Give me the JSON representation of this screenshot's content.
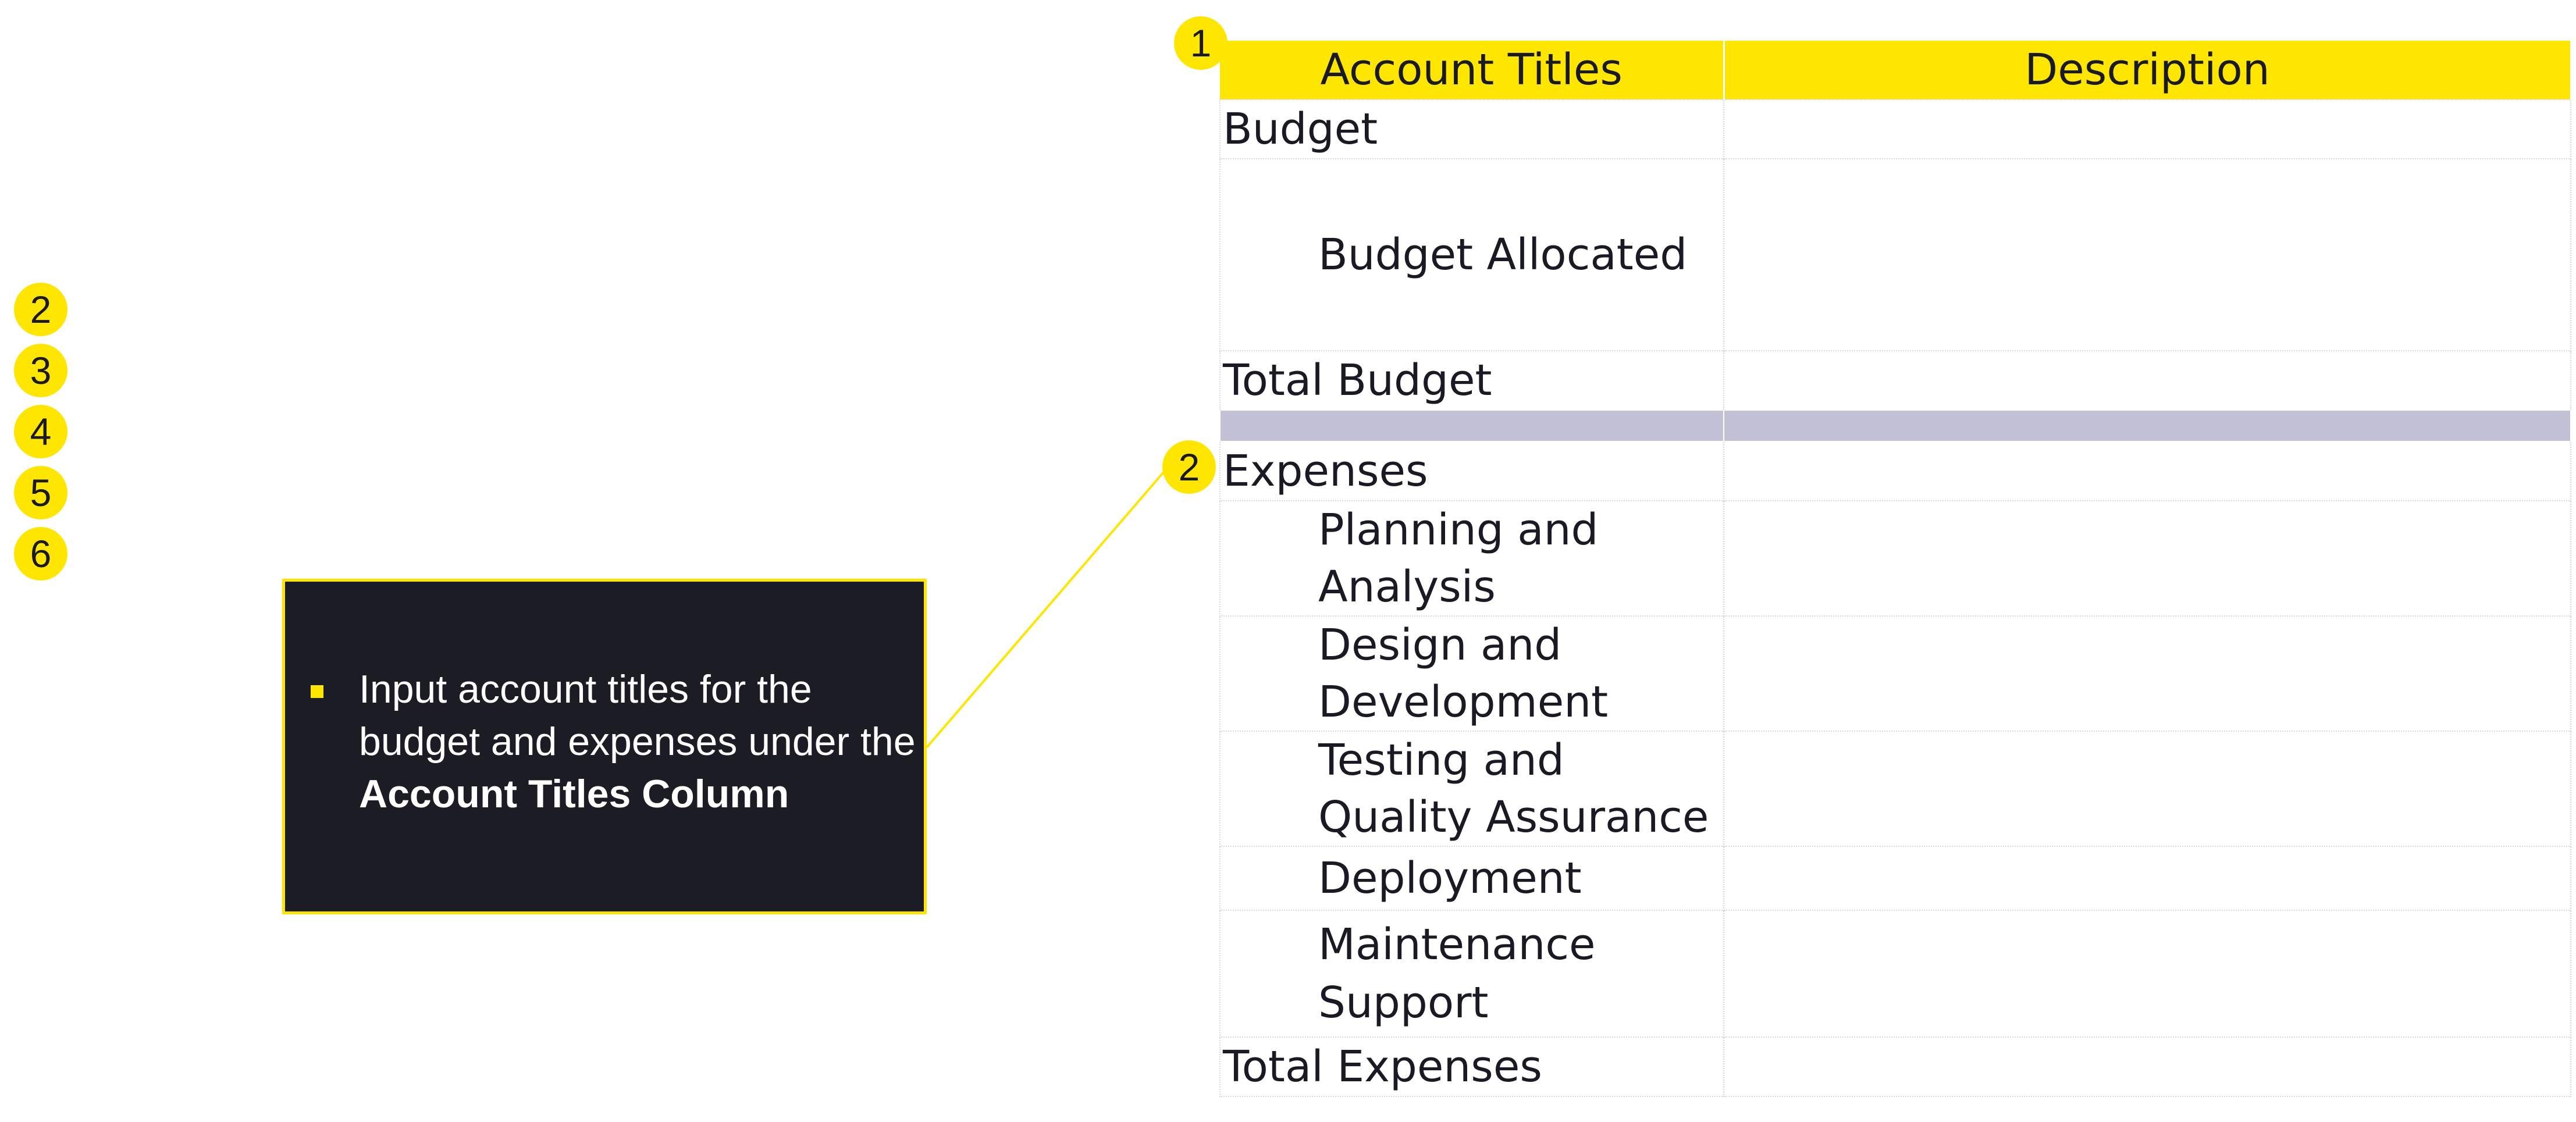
{
  "steps": [
    "2",
    "3",
    "4",
    "5",
    "6"
  ],
  "callout": {
    "text_prefix": "Input account titles for the budget and expenses under the ",
    "text_bold": "Account Titles Column"
  },
  "markers": {
    "header": "1",
    "expenses": "2"
  },
  "table": {
    "headers": {
      "account_titles": "Account Titles",
      "description": "Description"
    },
    "budget_section": "Budget",
    "budget_item": "Budget Allocated",
    "total_budget": "Total Budget",
    "expenses_section": "Expenses",
    "expense_items": [
      "Planning and Analysis",
      "Design and Development",
      "Testing and Quality Assurance",
      "Deployment",
      "Maintenance Support"
    ],
    "total_expenses": "Total Expenses"
  },
  "colors": {
    "accent": "#ffe600",
    "callout_bg": "#1c1c24",
    "spacer_row": "#c1c0d4"
  }
}
